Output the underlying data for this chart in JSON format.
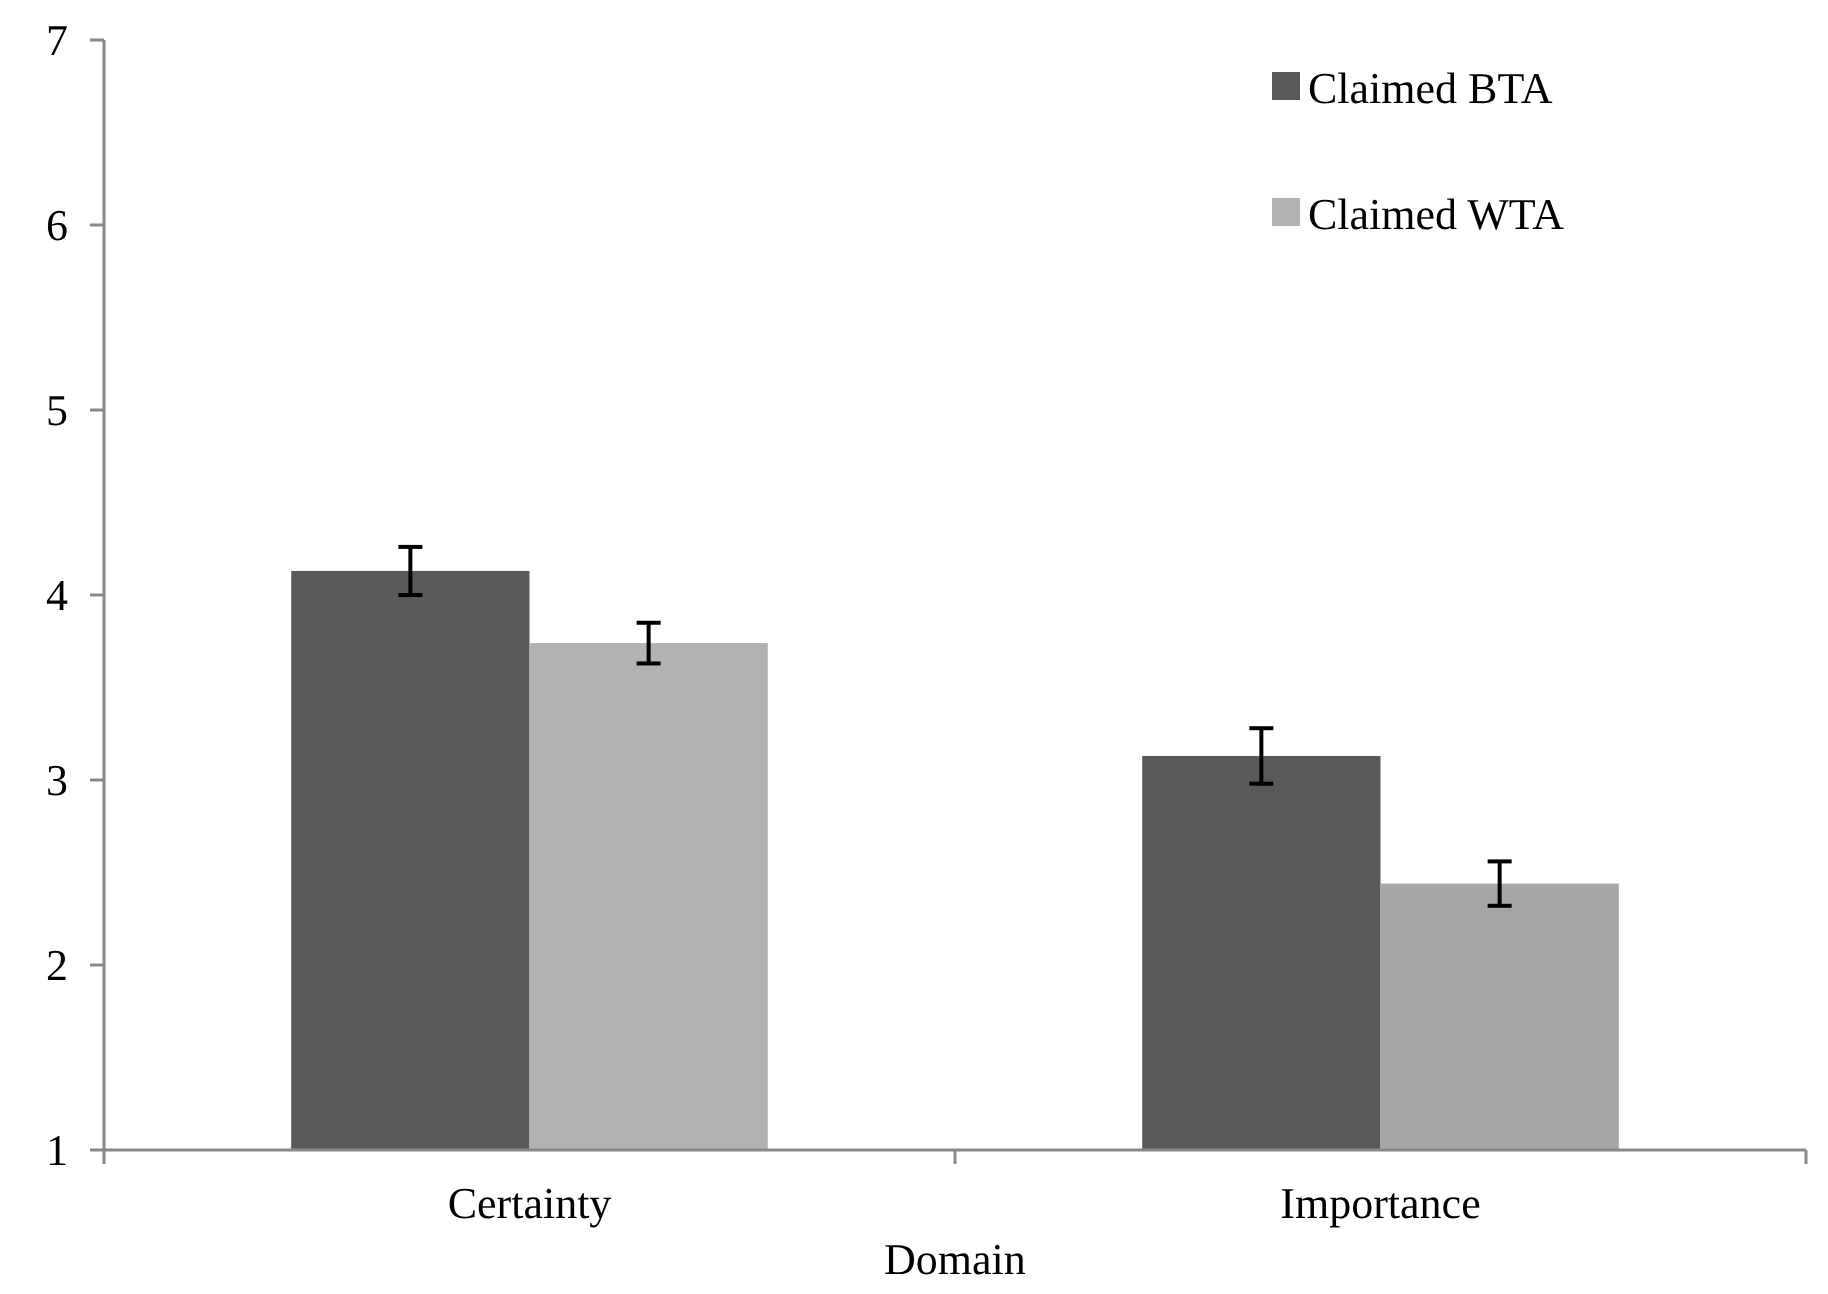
{
  "chart_data": {
    "type": "bar",
    "xlabel": "Domain",
    "categories": [
      "Certainty",
      "Importance"
    ],
    "series": [
      {
        "name": "Claimed BTA",
        "color": "#595959",
        "values": [
          4.13,
          3.13
        ],
        "errors": [
          0.13,
          0.15
        ]
      },
      {
        "name": "Claimed WTA",
        "colors": [
          "#b2b2b2",
          "#a6a6a6"
        ],
        "color": "#b2b2b2",
        "values": [
          3.74,
          2.44
        ],
        "errors": [
          0.11,
          0.12
        ]
      }
    ],
    "ylim": [
      1,
      7
    ],
    "yticks": [
      1,
      2,
      3,
      4,
      5,
      6,
      7
    ],
    "grid": false,
    "legend": "top right"
  }
}
